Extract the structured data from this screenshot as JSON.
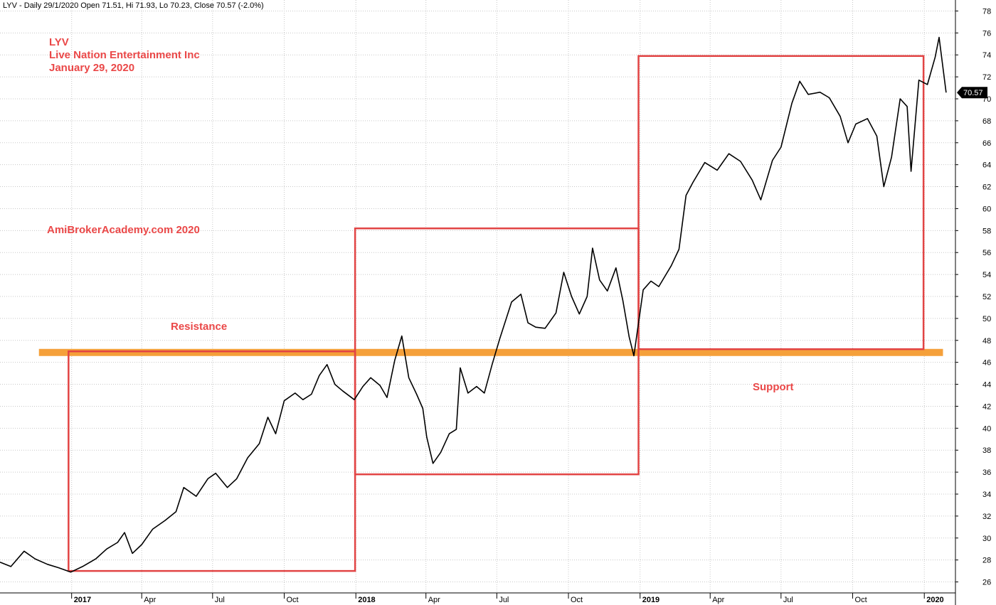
{
  "header": {
    "text": "LYV - Daily 29/1/2020 Open 71.51, Hi 71.93, Lo 70.23, Close 70.57 (-2.0%)"
  },
  "chart_data": {
    "type": "line",
    "ylim": [
      25,
      79
    ],
    "yticks": [
      26,
      28,
      30,
      32,
      34,
      36,
      38,
      40,
      42,
      44,
      46,
      48,
      50,
      52,
      54,
      56,
      58,
      60,
      62,
      64,
      66,
      68,
      70,
      72,
      74,
      76,
      78
    ],
    "y_axis_position": "right",
    "grid": true,
    "x_start": "2016-10-01",
    "x_end": "2020-02-10",
    "xticks": [
      {
        "date": "2017-01-01",
        "label": "2017",
        "year": true
      },
      {
        "date": "2017-04-01",
        "label": "Apr",
        "year": false
      },
      {
        "date": "2017-07-01",
        "label": "Jul",
        "year": false
      },
      {
        "date": "2017-10-01",
        "label": "Oct",
        "year": false
      },
      {
        "date": "2018-01-01",
        "label": "2018",
        "year": true
      },
      {
        "date": "2018-04-01",
        "label": "Apr",
        "year": false
      },
      {
        "date": "2018-07-01",
        "label": "Jul",
        "year": false
      },
      {
        "date": "2018-10-01",
        "label": "Oct",
        "year": false
      },
      {
        "date": "2019-01-01",
        "label": "2019",
        "year": true
      },
      {
        "date": "2019-04-01",
        "label": "Apr",
        "year": false
      },
      {
        "date": "2019-07-01",
        "label": "Jul",
        "year": false
      },
      {
        "date": "2019-10-01",
        "label": "Oct",
        "year": false
      },
      {
        "date": "2020-01-01",
        "label": "2020",
        "year": true
      }
    ],
    "series": [
      {
        "color": "#000000",
        "points": [
          [
            "2016-10-01",
            27.8
          ],
          [
            "2016-10-15",
            27.4
          ],
          [
            "2016-11-01",
            28.8
          ],
          [
            "2016-11-15",
            28.1
          ],
          [
            "2016-12-01",
            27.6
          ],
          [
            "2016-12-15",
            27.3
          ],
          [
            "2016-12-31",
            26.9
          ],
          [
            "2017-01-15",
            27.4
          ],
          [
            "2017-02-01",
            28.1
          ],
          [
            "2017-02-15",
            29.0
          ],
          [
            "2017-03-01",
            29.6
          ],
          [
            "2017-03-10",
            30.5
          ],
          [
            "2017-03-20",
            28.6
          ],
          [
            "2017-04-01",
            29.4
          ],
          [
            "2017-04-15",
            30.8
          ],
          [
            "2017-05-01",
            31.6
          ],
          [
            "2017-05-15",
            32.4
          ],
          [
            "2017-05-25",
            34.6
          ],
          [
            "2017-06-10",
            33.8
          ],
          [
            "2017-06-25",
            35.4
          ],
          [
            "2017-07-05",
            35.9
          ],
          [
            "2017-07-20",
            34.6
          ],
          [
            "2017-08-01",
            35.4
          ],
          [
            "2017-08-15",
            37.3
          ],
          [
            "2017-08-30",
            38.6
          ],
          [
            "2017-09-10",
            41.0
          ],
          [
            "2017-09-20",
            39.5
          ],
          [
            "2017-10-01",
            42.5
          ],
          [
            "2017-10-15",
            43.2
          ],
          [
            "2017-10-25",
            42.6
          ],
          [
            "2017-11-05",
            43.1
          ],
          [
            "2017-11-15",
            44.8
          ],
          [
            "2017-11-25",
            45.8
          ],
          [
            "2017-12-05",
            44.0
          ],
          [
            "2017-12-15",
            43.4
          ],
          [
            "2017-12-30",
            42.6
          ],
          [
            "2018-01-10",
            43.8
          ],
          [
            "2018-01-20",
            44.6
          ],
          [
            "2018-02-01",
            43.9
          ],
          [
            "2018-02-10",
            42.8
          ],
          [
            "2018-02-20",
            46.2
          ],
          [
            "2018-03-01",
            48.4
          ],
          [
            "2018-03-10",
            44.6
          ],
          [
            "2018-03-20",
            43.1
          ],
          [
            "2018-03-28",
            41.8
          ],
          [
            "2018-04-02",
            39.2
          ],
          [
            "2018-04-10",
            36.8
          ],
          [
            "2018-04-20",
            37.8
          ],
          [
            "2018-05-01",
            39.5
          ],
          [
            "2018-05-10",
            39.9
          ],
          [
            "2018-05-15",
            45.5
          ],
          [
            "2018-05-25",
            43.2
          ],
          [
            "2018-06-05",
            43.8
          ],
          [
            "2018-06-15",
            43.2
          ],
          [
            "2018-06-25",
            45.8
          ],
          [
            "2018-07-05",
            48.2
          ],
          [
            "2018-07-20",
            51.5
          ],
          [
            "2018-08-01",
            52.2
          ],
          [
            "2018-08-10",
            49.6
          ],
          [
            "2018-08-20",
            49.2
          ],
          [
            "2018-09-01",
            49.1
          ],
          [
            "2018-09-15",
            50.5
          ],
          [
            "2018-09-25",
            54.2
          ],
          [
            "2018-10-05",
            52.0
          ],
          [
            "2018-10-15",
            50.4
          ],
          [
            "2018-10-25",
            52.0
          ],
          [
            "2018-11-01",
            56.4
          ],
          [
            "2018-11-10",
            53.5
          ],
          [
            "2018-11-20",
            52.5
          ],
          [
            "2018-12-01",
            54.6
          ],
          [
            "2018-12-10",
            51.6
          ],
          [
            "2018-12-18",
            48.3
          ],
          [
            "2018-12-24",
            46.6
          ],
          [
            "2019-01-05",
            52.6
          ],
          [
            "2019-01-15",
            53.4
          ],
          [
            "2019-01-25",
            52.9
          ],
          [
            "2019-02-10",
            54.8
          ],
          [
            "2019-02-20",
            56.3
          ],
          [
            "2019-03-01",
            61.2
          ],
          [
            "2019-03-10",
            62.4
          ],
          [
            "2019-03-25",
            64.2
          ],
          [
            "2019-04-10",
            63.5
          ],
          [
            "2019-04-25",
            65.0
          ],
          [
            "2019-05-10",
            64.3
          ],
          [
            "2019-05-25",
            62.6
          ],
          [
            "2019-06-05",
            60.8
          ],
          [
            "2019-06-20",
            64.4
          ],
          [
            "2019-07-01",
            65.6
          ],
          [
            "2019-07-15",
            69.6
          ],
          [
            "2019-07-25",
            71.6
          ],
          [
            "2019-08-05",
            70.4
          ],
          [
            "2019-08-20",
            70.6
          ],
          [
            "2019-09-01",
            70.1
          ],
          [
            "2019-09-15",
            68.4
          ],
          [
            "2019-09-25",
            66.0
          ],
          [
            "2019-10-05",
            67.7
          ],
          [
            "2019-10-20",
            68.2
          ],
          [
            "2019-11-01",
            66.6
          ],
          [
            "2019-11-10",
            62.0
          ],
          [
            "2019-11-20",
            64.7
          ],
          [
            "2019-12-01",
            70.0
          ],
          [
            "2019-12-10",
            69.3
          ],
          [
            "2019-12-15",
            63.4
          ],
          [
            "2019-12-25",
            71.7
          ],
          [
            "2020-01-05",
            71.3
          ],
          [
            "2020-01-15",
            73.8
          ],
          [
            "2020-01-20",
            75.6
          ],
          [
            "2020-01-29",
            70.57
          ]
        ]
      }
    ],
    "last_value": {
      "date": "2020-01-29",
      "value": 70.57,
      "label": "70.57"
    },
    "annotations": {
      "title_lines": [
        "LYV",
        "Live Nation Entertainment Inc",
        "January 29, 2020"
      ],
      "watermark": "AmiBrokerAcademy.com  2020",
      "resistance_label": "Resistance",
      "support_label": "Support",
      "label_color": "#ea4848",
      "box_color": "#e24444",
      "line_color": "#f5a03a"
    },
    "level_line": {
      "value": 46.9,
      "x_from": "2016-11-20",
      "x_to": "2020-01-25"
    },
    "boxes": [
      {
        "x_from": "2016-12-28",
        "x_to": "2017-12-31",
        "y_low": 27.0,
        "y_high": 47.0
      },
      {
        "x_from": "2017-12-31",
        "x_to": "2018-12-30",
        "y_low": 35.8,
        "y_high": 58.2
      },
      {
        "x_from": "2018-12-30",
        "x_to": "2019-12-31",
        "y_low": 47.2,
        "y_high": 73.9
      }
    ]
  }
}
